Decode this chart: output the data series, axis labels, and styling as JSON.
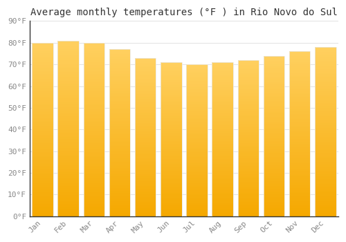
{
  "title": "Average monthly temperatures (°F ) in Rio Novo do Sul",
  "months": [
    "Jan",
    "Feb",
    "Mar",
    "Apr",
    "May",
    "Jun",
    "Jul",
    "Aug",
    "Sep",
    "Oct",
    "Nov",
    "Dec"
  ],
  "values": [
    80,
    81,
    80,
    77,
    73,
    71,
    70,
    71,
    72,
    74,
    76,
    78
  ],
  "bar_color_bottom": "#F5A800",
  "bar_color_top": "#FFD060",
  "bar_edge_color": "#E8E8E8",
  "background_color": "#FFFFFF",
  "plot_bg_color": "#FFFFFF",
  "grid_color": "#DDDDDD",
  "ylim": [
    0,
    90
  ],
  "yticks": [
    0,
    10,
    20,
    30,
    40,
    50,
    60,
    70,
    80,
    90
  ],
  "title_fontsize": 10,
  "tick_fontsize": 8,
  "bar_width": 0.82
}
